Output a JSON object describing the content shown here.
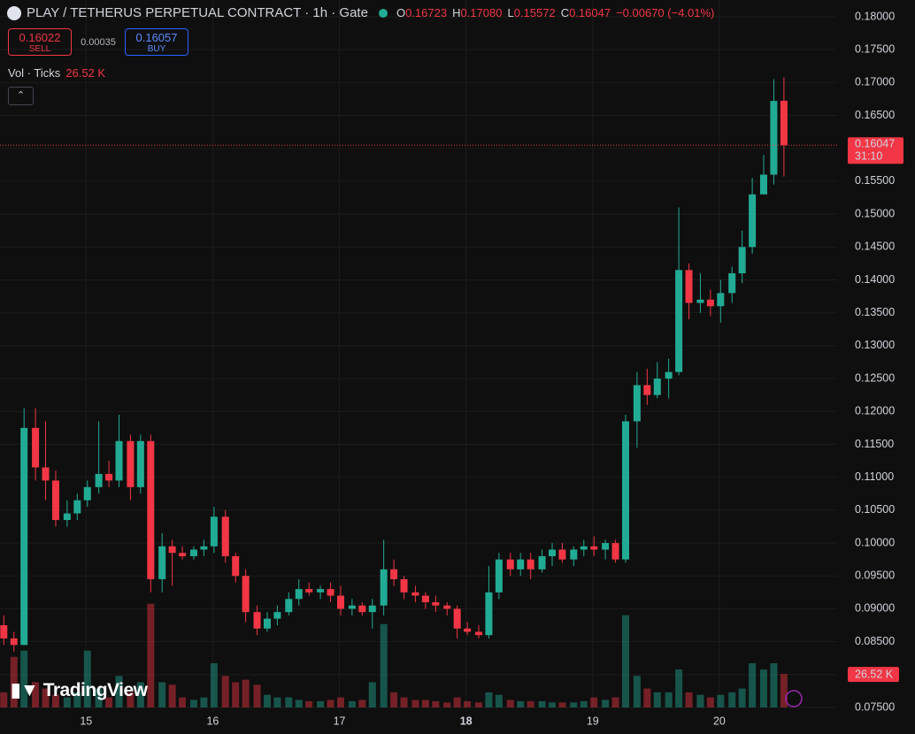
{
  "header": {
    "title": "PLAY / TETHERUS PERPETUAL CONTRACT · 1h · Gate",
    "ohlc": [
      {
        "key": "O",
        "value": 0.16723
      },
      {
        "key": "H",
        "value": 0.1708
      },
      {
        "key": "L",
        "value": 0.15572
      },
      {
        "key": "C",
        "value": 0.16047
      }
    ],
    "ohlc_value_labels": [
      "0.16723",
      "0.17080",
      "0.15572",
      "0.16047"
    ],
    "change": "−0.00670 (−4.01%)",
    "sell": {
      "price": 0.16022,
      "label": "SELL"
    },
    "spread": 0.00035,
    "buy": {
      "price": 0.16057,
      "label": "BUY"
    },
    "volume_title": "Vol · Ticks",
    "volume_label": "26.52 K",
    "countdown": "31:10",
    "brand": "TradingView"
  },
  "chart_data": {
    "type": "candlestick",
    "up_color": "#22ab94",
    "down_color": "#f23645",
    "grid": true,
    "xlim": [
      14.32,
      20.93
    ],
    "xticks": [
      15,
      16,
      17,
      18,
      19,
      20
    ],
    "highlight_xticks": [
      18
    ],
    "ylim": [
      0.07433,
      0.18255
    ],
    "yticks": [
      {
        "value": 0.075,
        "label": "0.07500"
      },
      {
        "value": 0.08,
        "label": "0.08000"
      },
      {
        "value": 0.085,
        "label": "0.08500"
      },
      {
        "value": 0.09,
        "label": "0.09000"
      },
      {
        "value": 0.095,
        "label": "0.09500"
      },
      {
        "value": 0.1,
        "label": "0.10000"
      },
      {
        "value": 0.105,
        "label": "0.10500"
      },
      {
        "value": 0.11,
        "label": "0.11000"
      },
      {
        "value": 0.115,
        "label": "0.11500"
      },
      {
        "value": 0.12,
        "label": "0.12000"
      },
      {
        "value": 0.125,
        "label": "0.12500"
      },
      {
        "value": 0.13,
        "label": "0.13000"
      },
      {
        "value": 0.135,
        "label": "0.13500"
      },
      {
        "value": 0.14,
        "label": "0.14000"
      },
      {
        "value": 0.145,
        "label": "0.14500"
      },
      {
        "value": 0.15,
        "label": "0.15000"
      },
      {
        "value": 0.155,
        "label": "0.15500"
      },
      {
        "value": 0.16,
        "label": "0.16000"
      },
      {
        "value": 0.165,
        "label": "0.16500"
      },
      {
        "value": 0.17,
        "label": "0.17000"
      },
      {
        "value": 0.175,
        "label": "0.17500"
      },
      {
        "value": 0.18,
        "label": "0.18000"
      }
    ],
    "x": [
      14.35,
      14.43,
      14.51,
      14.6,
      14.68,
      14.76,
      14.85,
      14.93,
      15.01,
      15.1,
      15.18,
      15.26,
      15.35,
      15.43,
      15.51,
      15.6,
      15.68,
      15.76,
      15.85,
      15.93,
      16.01,
      16.1,
      16.18,
      16.26,
      16.35,
      16.43,
      16.51,
      16.6,
      16.68,
      16.76,
      16.85,
      16.93,
      17.01,
      17.1,
      17.18,
      17.26,
      17.35,
      17.43,
      17.51,
      17.6,
      17.68,
      17.76,
      17.85,
      17.93,
      18.01,
      18.1,
      18.18,
      18.26,
      18.35,
      18.43,
      18.51,
      18.6,
      18.68,
      18.76,
      18.85,
      18.93,
      19.01,
      19.1,
      19.18,
      19.26,
      19.35,
      19.43,
      19.51,
      19.6,
      19.68,
      19.76,
      19.85,
      19.93,
      20.01,
      20.1,
      20.18,
      20.26,
      20.35,
      20.43,
      20.51
    ],
    "open": [
      0.0875,
      0.0855,
      0.0845,
      0.1175,
      0.1115,
      0.1095,
      0.1035,
      0.1045,
      0.1065,
      0.1085,
      0.1105,
      0.1095,
      0.1155,
      0.1085,
      0.1155,
      0.0945,
      0.0995,
      0.0985,
      0.098,
      0.099,
      0.0995,
      0.104,
      0.098,
      0.095,
      0.0895,
      0.087,
      0.0885,
      0.0895,
      0.0915,
      0.093,
      0.0925,
      0.093,
      0.092,
      0.09,
      0.0905,
      0.0895,
      0.0905,
      0.096,
      0.0945,
      0.0925,
      0.092,
      0.091,
      0.0905,
      0.09,
      0.087,
      0.0865,
      0.086,
      0.0925,
      0.0975,
      0.096,
      0.0975,
      0.096,
      0.098,
      0.099,
      0.0975,
      0.099,
      0.0995,
      0.099,
      0.1,
      0.0975,
      0.1185,
      0.124,
      0.1225,
      0.125,
      0.126,
      0.1415,
      0.1365,
      0.137,
      0.136,
      0.138,
      0.141,
      0.145,
      0.153,
      0.156,
      0.16723
    ],
    "high": [
      0.089,
      0.0865,
      0.1205,
      0.1205,
      0.1185,
      0.111,
      0.1065,
      0.1075,
      0.1095,
      0.1185,
      0.1125,
      0.1195,
      0.1165,
      0.1165,
      0.1165,
      0.1015,
      0.1005,
      0.0995,
      0.0995,
      0.1005,
      0.1055,
      0.105,
      0.0985,
      0.096,
      0.0905,
      0.0895,
      0.0905,
      0.0925,
      0.0945,
      0.094,
      0.0935,
      0.094,
      0.0935,
      0.0915,
      0.091,
      0.0915,
      0.1005,
      0.0975,
      0.095,
      0.0935,
      0.0925,
      0.092,
      0.091,
      0.0905,
      0.088,
      0.0875,
      0.0965,
      0.0985,
      0.0985,
      0.0985,
      0.0985,
      0.099,
      0.1,
      0.1,
      0.0995,
      0.1005,
      0.101,
      0.1005,
      0.1005,
      0.1195,
      0.126,
      0.1265,
      0.1275,
      0.128,
      0.151,
      0.1425,
      0.141,
      0.1385,
      0.14,
      0.142,
      0.1475,
      0.1555,
      0.159,
      0.1705,
      0.1708
    ],
    "low": [
      0.0845,
      0.0835,
      0.0845,
      0.1095,
      0.1065,
      0.1025,
      0.1025,
      0.1035,
      0.1055,
      0.1075,
      0.1085,
      0.1085,
      0.1065,
      0.1075,
      0.0925,
      0.0925,
      0.0935,
      0.0975,
      0.0975,
      0.098,
      0.0985,
      0.097,
      0.094,
      0.088,
      0.086,
      0.0865,
      0.0875,
      0.089,
      0.0905,
      0.092,
      0.0915,
      0.091,
      0.089,
      0.089,
      0.089,
      0.087,
      0.089,
      0.0935,
      0.0915,
      0.091,
      0.09,
      0.0895,
      0.089,
      0.0855,
      0.086,
      0.0855,
      0.0855,
      0.0915,
      0.095,
      0.095,
      0.0945,
      0.0955,
      0.0965,
      0.097,
      0.0965,
      0.098,
      0.098,
      0.0975,
      0.097,
      0.097,
      0.1145,
      0.121,
      0.122,
      0.122,
      0.1255,
      0.134,
      0.135,
      0.1345,
      0.1335,
      0.1365,
      0.1395,
      0.144,
      0.153,
      0.1545,
      0.15572
    ],
    "close": [
      0.0855,
      0.0845,
      0.1175,
      0.1115,
      0.1095,
      0.1035,
      0.1045,
      0.1065,
      0.1085,
      0.1105,
      0.1095,
      0.1155,
      0.1085,
      0.1155,
      0.0945,
      0.0995,
      0.0985,
      0.098,
      0.099,
      0.0995,
      0.104,
      0.098,
      0.095,
      0.0895,
      0.087,
      0.0885,
      0.0895,
      0.0915,
      0.093,
      0.0925,
      0.093,
      0.092,
      0.09,
      0.0905,
      0.0895,
      0.0905,
      0.096,
      0.0945,
      0.0925,
      0.092,
      0.091,
      0.0905,
      0.09,
      0.087,
      0.0865,
      0.086,
      0.0925,
      0.0975,
      0.096,
      0.0975,
      0.096,
      0.098,
      0.099,
      0.0975,
      0.099,
      0.0995,
      0.099,
      0.1,
      0.0975,
      0.1185,
      0.124,
      0.1225,
      0.125,
      0.126,
      0.1415,
      0.1365,
      0.137,
      0.136,
      0.138,
      0.141,
      0.145,
      0.153,
      0.156,
      0.1672,
      0.16047
    ],
    "volume": [
      12,
      40,
      45,
      20,
      15,
      10,
      8,
      12,
      45,
      15,
      8,
      25,
      12,
      20,
      82,
      20,
      18,
      8,
      6,
      8,
      35,
      25,
      20,
      22,
      18,
      10,
      8,
      8,
      6,
      5,
      5,
      6,
      8,
      5,
      6,
      20,
      66,
      12,
      8,
      6,
      6,
      5,
      4,
      8,
      5,
      4,
      12,
      10,
      6,
      5,
      5,
      5,
      4,
      4,
      4,
      5,
      8,
      6,
      8,
      73,
      25,
      15,
      12,
      12,
      30,
      12,
      10,
      8,
      10,
      12,
      15,
      35,
      30,
      35,
      26.52
    ]
  }
}
